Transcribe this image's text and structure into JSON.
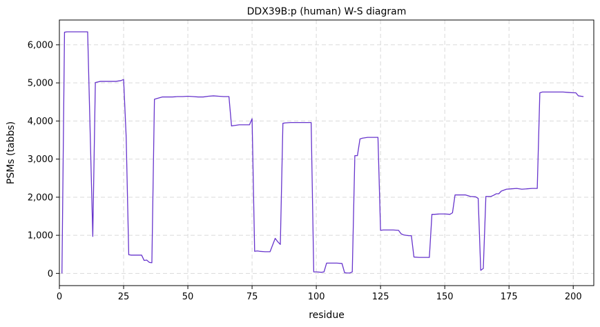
{
  "chart_data": {
    "type": "line",
    "title": "DDX39B:p (human) W-S diagram",
    "xlabel": "residue",
    "ylabel": "PSMs (tabbs)",
    "xlim": [
      0,
      208
    ],
    "ylim": [
      -320,
      6650
    ],
    "xticks": [
      0,
      25,
      50,
      75,
      100,
      125,
      150,
      175,
      200
    ],
    "xtick_labels": [
      "0",
      "25",
      "50",
      "75",
      "100",
      "125",
      "150",
      "175",
      "200"
    ],
    "yticks": [
      0,
      1000,
      2000,
      3000,
      4000,
      5000,
      6000
    ],
    "ytick_labels": [
      "0",
      "1,000",
      "2,000",
      "3,000",
      "4,000",
      "5,000",
      "6,000"
    ],
    "grid": true,
    "line_color": "#6633cc",
    "series": [
      {
        "x": [
          1,
          2,
          3,
          5,
          7,
          9,
          11,
          13,
          14,
          16,
          18,
          20,
          22,
          24,
          25,
          26,
          27,
          28,
          30,
          32,
          33,
          34,
          35,
          36,
          37,
          38,
          40,
          42,
          44,
          46,
          48,
          50,
          52,
          54,
          56,
          58,
          60,
          62,
          64,
          66,
          67,
          68,
          70,
          72,
          74,
          75,
          76,
          77,
          78,
          80,
          82,
          84,
          85,
          86,
          87,
          88,
          90,
          92,
          94,
          96,
          98,
          99,
          100,
          102,
          103,
          104,
          106,
          108,
          110,
          111,
          112,
          113,
          114,
          115,
          116,
          117,
          118,
          120,
          122,
          124,
          125,
          126,
          128,
          130,
          132,
          133,
          134,
          135,
          136,
          137,
          138,
          140,
          142,
          144,
          145,
          146,
          148,
          150,
          152,
          153,
          154,
          156,
          158,
          160,
          162,
          163,
          164,
          165,
          166,
          167,
          168,
          169,
          170,
          171,
          172,
          174,
          176,
          178,
          180,
          182,
          184,
          186,
          187,
          188,
          190,
          192,
          194,
          196,
          198,
          200,
          201,
          202,
          204
        ],
        "y": [
          0,
          6330,
          6340,
          6340,
          6340,
          6340,
          6340,
          970,
          5010,
          5040,
          5040,
          5040,
          5040,
          5060,
          5090,
          3580,
          490,
          480,
          480,
          480,
          340,
          350,
          290,
          280,
          4570,
          4590,
          4630,
          4630,
          4630,
          4640,
          4640,
          4650,
          4640,
          4630,
          4630,
          4650,
          4660,
          4650,
          4640,
          4640,
          3870,
          3880,
          3900,
          3900,
          3900,
          4060,
          580,
          590,
          580,
          570,
          570,
          920,
          830,
          760,
          3940,
          3950,
          3960,
          3960,
          3960,
          3960,
          3960,
          40,
          40,
          30,
          40,
          270,
          270,
          270,
          260,
          20,
          10,
          10,
          40,
          3090,
          3090,
          3530,
          3550,
          3570,
          3570,
          3570,
          1130,
          1140,
          1140,
          1140,
          1130,
          1040,
          1010,
          1000,
          990,
          990,
          430,
          420,
          420,
          420,
          1550,
          1550,
          1560,
          1560,
          1550,
          1590,
          2060,
          2060,
          2060,
          2020,
          2010,
          1970,
          80,
          130,
          2020,
          2020,
          2020,
          2050,
          2090,
          2090,
          2160,
          2210,
          2220,
          2230,
          2210,
          2220,
          2230,
          2230,
          4740,
          4760,
          4760,
          4760,
          4760,
          4760,
          4750,
          4740,
          4740,
          4660,
          4640
        ]
      }
    ]
  }
}
